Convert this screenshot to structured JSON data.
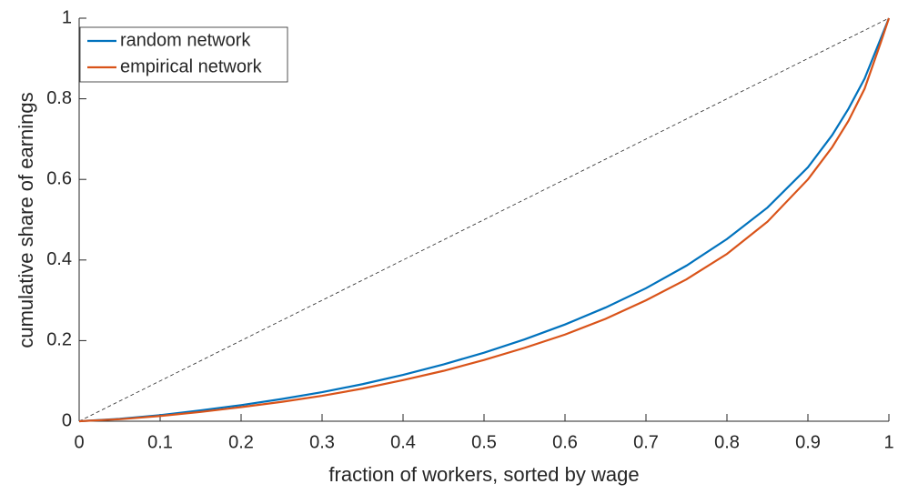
{
  "chart_data": {
    "type": "line",
    "xlabel": "fraction of workers, sorted by wage",
    "ylabel": "cumulative share of earnings",
    "x": [
      0,
      0.05,
      0.1,
      0.15,
      0.2,
      0.25,
      0.3,
      0.35,
      0.4,
      0.45,
      0.5,
      0.55,
      0.6,
      0.65,
      0.7,
      0.75,
      0.8,
      0.85,
      0.9,
      0.93,
      0.95,
      0.97,
      0.99,
      1
    ],
    "series": [
      {
        "name": "random network",
        "color": "#0072bd",
        "values": [
          0,
          0.006,
          0.015,
          0.027,
          0.04,
          0.055,
          0.072,
          0.092,
          0.115,
          0.141,
          0.17,
          0.203,
          0.24,
          0.282,
          0.33,
          0.386,
          0.452,
          0.53,
          0.63,
          0.71,
          0.775,
          0.85,
          0.95,
          1
        ]
      },
      {
        "name": "empirical network",
        "color": "#d95319",
        "values": [
          0,
          0.005,
          0.013,
          0.023,
          0.035,
          0.048,
          0.063,
          0.081,
          0.102,
          0.125,
          0.152,
          0.182,
          0.215,
          0.254,
          0.3,
          0.352,
          0.415,
          0.495,
          0.6,
          0.68,
          0.745,
          0.825,
          0.94,
          1
        ]
      }
    ],
    "xlim": [
      0,
      1
    ],
    "ylim": [
      0,
      1
    ],
    "xticks": [
      0,
      0.1,
      0.2,
      0.3,
      0.4,
      0.5,
      0.6,
      0.7,
      0.8,
      0.9,
      1
    ],
    "yticks": [
      0,
      0.2,
      0.4,
      0.6,
      0.8,
      1
    ],
    "legend": "upper left",
    "diagonal": true
  }
}
